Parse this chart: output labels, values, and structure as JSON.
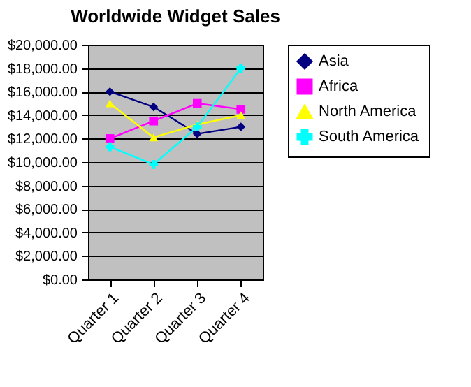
{
  "chart_data": {
    "type": "line",
    "title": "Worldwide Widget Sales",
    "categories": [
      "Quarter 1",
      "Quarter 2",
      "Quarter 3",
      "Quarter 4"
    ],
    "series": [
      {
        "name": "Asia",
        "color": "#000080",
        "marker": "diamond",
        "values": [
          16000,
          14700,
          12400,
          13000
        ]
      },
      {
        "name": "Africa",
        "color": "#ff00ff",
        "marker": "square",
        "values": [
          12000,
          13500,
          15000,
          14500
        ]
      },
      {
        "name": "North America",
        "color": "#ffff00",
        "marker": "triangle",
        "values": [
          15000,
          12100,
          13200,
          14000
        ]
      },
      {
        "name": "South America",
        "color": "#00ffff",
        "marker": "cross",
        "values": [
          11300,
          9800,
          13000,
          18000
        ]
      }
    ],
    "ylim": [
      0,
      20000
    ],
    "yticks": [
      {
        "value": 0,
        "label": "$0.00"
      },
      {
        "value": 2000,
        "label": "$2,000.00"
      },
      {
        "value": 4000,
        "label": "$4,000.00"
      },
      {
        "value": 6000,
        "label": "$6,000.00"
      },
      {
        "value": 8000,
        "label": "$8,000.00"
      },
      {
        "value": 10000,
        "label": "$10,000.00"
      },
      {
        "value": 12000,
        "label": "$12,000.00"
      },
      {
        "value": 14000,
        "label": "$14,000.00"
      },
      {
        "value": 16000,
        "label": "$16,000.00"
      },
      {
        "value": 18000,
        "label": "$18,000.00"
      },
      {
        "value": 20000,
        "label": "$20,000.00"
      }
    ],
    "grid": "y",
    "legend": "right"
  }
}
